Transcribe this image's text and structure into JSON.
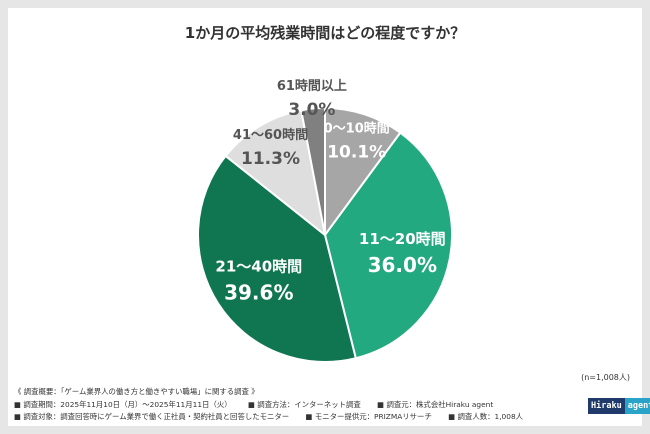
{
  "title": "1か月の平均残業時間はどの程度ですか？",
  "chart_data": {
    "type": "pie",
    "title": "1か月の平均残業時間はどの程度ですか？",
    "categories": [
      "0～10時間",
      "11～20時間",
      "21～40時間",
      "41～60時間",
      "61時間以上"
    ],
    "values": [
      10.1,
      36.0,
      39.6,
      11.3,
      3.0
    ],
    "value_labels": [
      "10.1%",
      "36.0%",
      "39.6%",
      "11.3%",
      "3.0%"
    ],
    "colors": [
      "#a6a6a6",
      "#23a97f",
      "#0f7651",
      "#dedede",
      "#808080"
    ],
    "label_colors": [
      "#ffffff",
      "#ffffff",
      "#ffffff",
      "#555555",
      "#555555"
    ],
    "start_angle_deg": 0,
    "direction": "clockwise"
  },
  "sample_size": "(n=1,008人)",
  "footnotes": {
    "overview": "《 調査概要：「ゲーム業界人の働き方と働きやすい職場」に関する調査 》",
    "period": "■ 調査期間：2025年11月10日（月）～2025年11月11日（火）",
    "method": "■ 調査方法：インターネット調査",
    "organizer": "■ 調査元：株式会社Hiraku agent",
    "target": "■ 調査対象：調査回答時にゲーム業界で働く正社員・契約社員と回答したモニター",
    "provider": "■ モニター提供元：PRIZMAリサーチ",
    "respondents": "■ 調査人数：1,008人"
  },
  "logo": {
    "part1": "Hiraku",
    "part2": "agent"
  }
}
